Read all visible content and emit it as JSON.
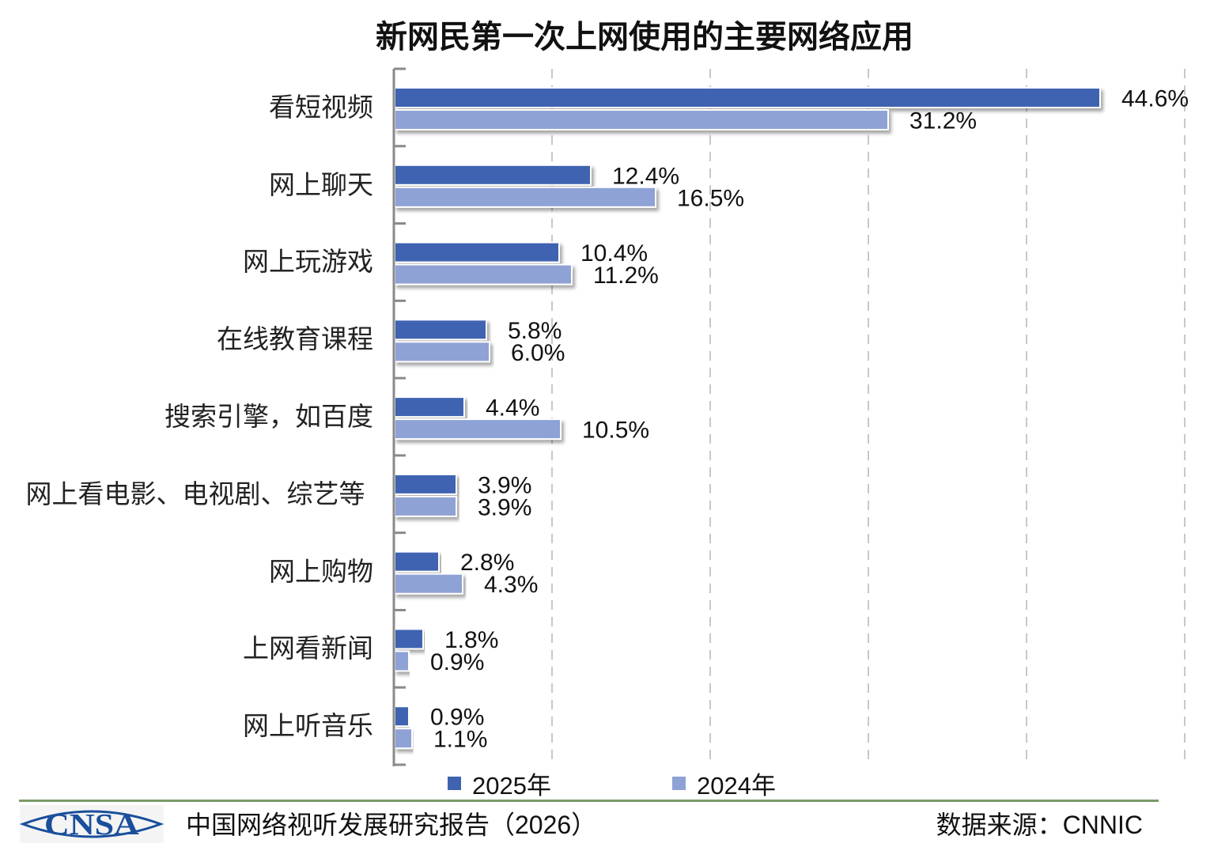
{
  "chart_data": {
    "type": "bar",
    "orientation": "horizontal",
    "title": "新网民第一次上网使用的主要网络应用",
    "categories": [
      "看短视频",
      "网上聊天",
      "网上玩游戏",
      "在线教育课程",
      "搜索引擎，如百度",
      "网上看电影、电视剧、综艺等",
      "网上购物",
      "上网看新闻",
      "网上听音乐"
    ],
    "series": [
      {
        "name": "2025年",
        "color": "#4063B1",
        "values": [
          44.6,
          12.4,
          10.4,
          5.8,
          4.4,
          3.9,
          2.8,
          1.8,
          0.9
        ],
        "labels": [
          "44.6%",
          "12.4%",
          "10.4%",
          "5.8%",
          "4.4%",
          "3.9%",
          "2.8%",
          "1.8%",
          "0.9%"
        ]
      },
      {
        "name": "2024年",
        "color": "#8FA2D6",
        "values": [
          31.2,
          16.5,
          11.2,
          6.0,
          10.5,
          3.9,
          4.3,
          0.9,
          1.1
        ],
        "labels": [
          "31.2%",
          "16.5%",
          "11.2%",
          "6.0%",
          "10.5%",
          "3.9%",
          "4.3%",
          "0.9%",
          "1.1%"
        ]
      }
    ],
    "xlim": [
      0,
      50
    ],
    "grid": "vertical dashed",
    "legend": "bottom",
    "unit": "%"
  },
  "footer": {
    "logo_text": "CNSA",
    "report": "中国网络视听发展研究报告（2026）",
    "source": "数据来源：CNNIC"
  }
}
